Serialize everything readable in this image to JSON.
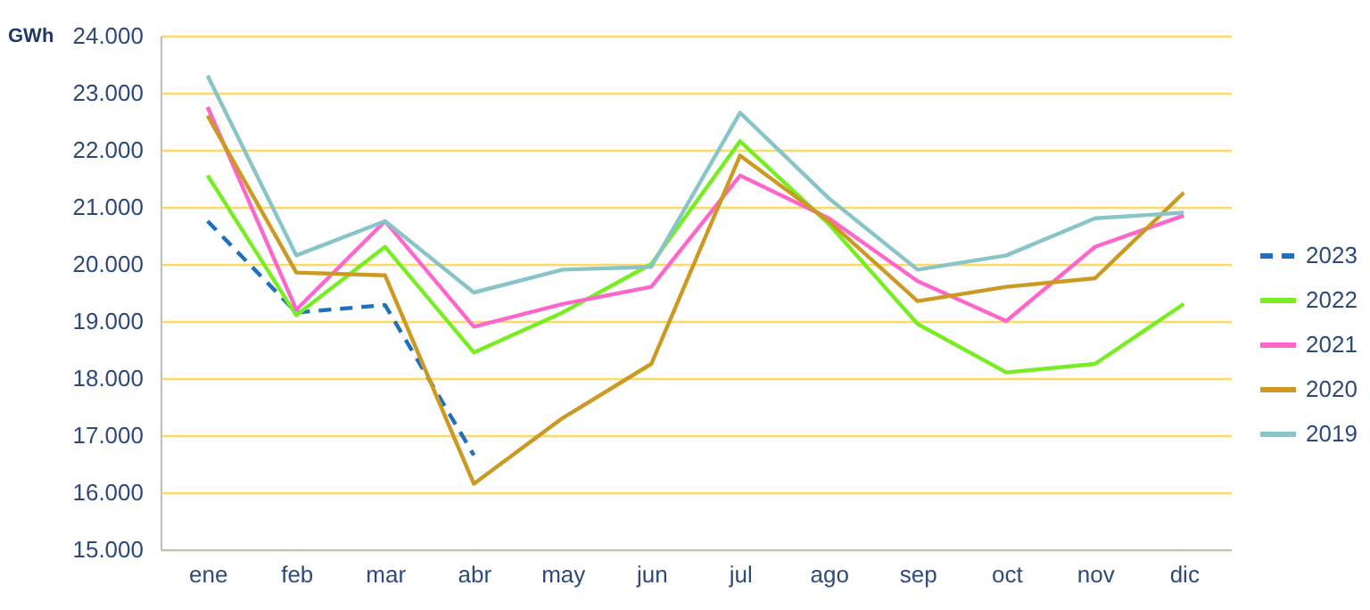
{
  "chart_data": {
    "type": "line",
    "ylabel": "GWh",
    "categories": [
      "ene",
      "feb",
      "mar",
      "abr",
      "may",
      "jun",
      "jul",
      "ago",
      "sep",
      "oct",
      "nov",
      "dic"
    ],
    "ylim": [
      15000,
      24000
    ],
    "yticks": [
      {
        "value": 15000,
        "label": "15.000"
      },
      {
        "value": 16000,
        "label": "16.000"
      },
      {
        "value": 17000,
        "label": "17.000"
      },
      {
        "value": 18000,
        "label": "18.000"
      },
      {
        "value": 19000,
        "label": "19.000"
      },
      {
        "value": 20000,
        "label": "20.000"
      },
      {
        "value": 21000,
        "label": "21.000"
      },
      {
        "value": 22000,
        "label": "22.000"
      },
      {
        "value": 23000,
        "label": "23.000"
      },
      {
        "value": 24000,
        "label": "24.000"
      }
    ],
    "grid": "y",
    "legend": "right",
    "marker": "none",
    "series": [
      {
        "name": "2023",
        "color": "#1f6fc0",
        "line_style": "dashed",
        "values": [
          20750,
          19150,
          19280,
          16650,
          null,
          null,
          null,
          null,
          null,
          null,
          null,
          null
        ]
      },
      {
        "name": "2022",
        "color": "#77ee22",
        "line_style": "solid",
        "values": [
          21550,
          19100,
          20300,
          18450,
          19150,
          20000,
          22150,
          20700,
          18950,
          18100,
          18250,
          19300
        ]
      },
      {
        "name": "2021",
        "color": "#ff66cc",
        "line_style": "solid",
        "values": [
          22750,
          19200,
          20750,
          18900,
          19300,
          19600,
          21550,
          20800,
          19700,
          19000,
          20300,
          20850
        ]
      },
      {
        "name": "2020",
        "color": "#cc9922",
        "line_style": "solid",
        "values": [
          22600,
          19850,
          19800,
          16150,
          17300,
          18250,
          21900,
          20750,
          19350,
          19600,
          19750,
          21250
        ]
      },
      {
        "name": "2019",
        "color": "#88c4c8",
        "line_style": "solid",
        "values": [
          23300,
          20150,
          20750,
          19500,
          19900,
          19950,
          22650,
          21150,
          19900,
          20150,
          20800,
          20900
        ]
      }
    ]
  }
}
